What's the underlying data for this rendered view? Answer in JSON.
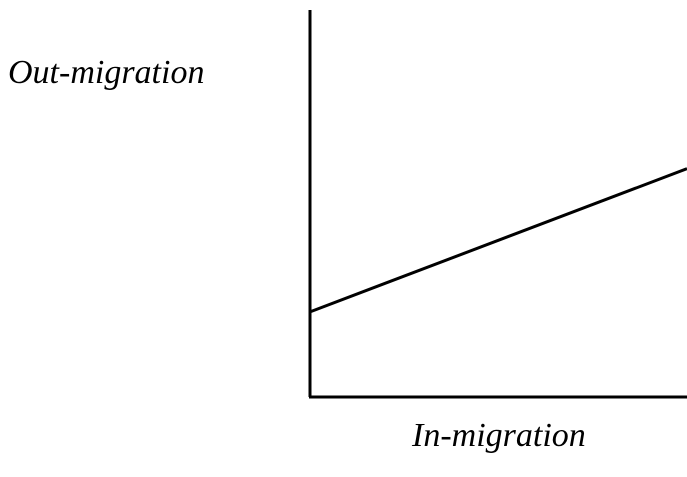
{
  "chart_data": {
    "type": "line",
    "x_label": "In-migration",
    "y_label": "Out-migration",
    "x": [
      0,
      100
    ],
    "values": [
      22,
      59
    ],
    "color": "#000000",
    "xlim": [
      0,
      100
    ],
    "ylim": [
      0,
      100
    ]
  }
}
